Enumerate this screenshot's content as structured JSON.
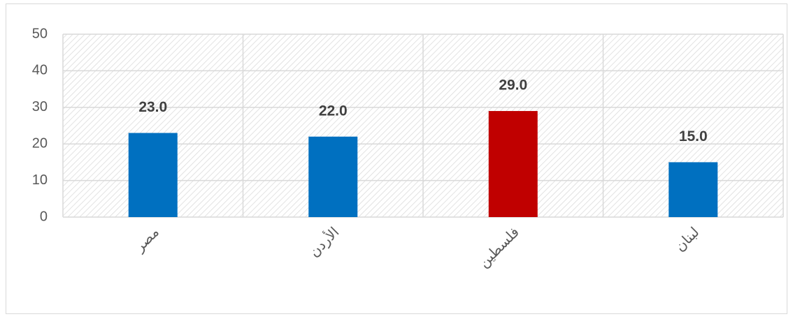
{
  "chart_data": {
    "type": "bar",
    "categories": [
      "مصر",
      "الأردن",
      "فلسطين",
      "لبنان"
    ],
    "values": [
      23,
      22,
      29,
      15
    ],
    "value_labels": [
      "23.0",
      "22.0",
      "29.0",
      "15.0"
    ],
    "colors": [
      "#0070c0",
      "#0070c0",
      "#c00000",
      "#0070c0"
    ],
    "ylim": [
      0,
      50
    ],
    "yticks": [
      0,
      10,
      20,
      30,
      40,
      50
    ],
    "grid": true
  }
}
